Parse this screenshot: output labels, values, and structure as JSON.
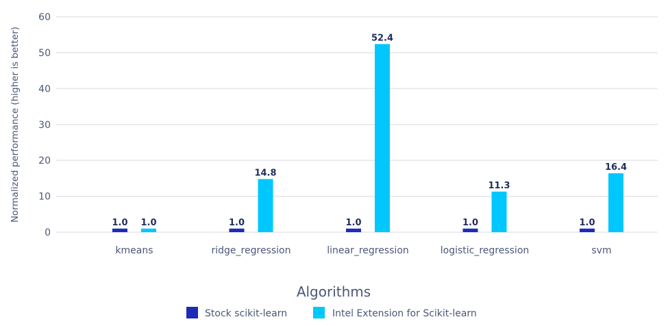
{
  "chart_data": {
    "type": "bar",
    "title": "",
    "xlabel": "Algorithms",
    "ylabel": "Normalized performance (higher is better)",
    "ylim": [
      0,
      60
    ],
    "yticks": [
      "0",
      "10",
      "20",
      "30",
      "40",
      "50",
      "60"
    ],
    "grid": "horizontal",
    "legend_position": "bottom",
    "categories": [
      "kmeans",
      "ridge_regression",
      "linear_regression",
      "logistic_regression",
      "svm"
    ],
    "series": [
      {
        "name": "Stock scikit-learn",
        "color": "#1e2bb8",
        "values": [
          1.0,
          1.0,
          1.0,
          1.0,
          1.0
        ],
        "labels": [
          "1.0",
          "1.0",
          "1.0",
          "1.0",
          "1.0"
        ]
      },
      {
        "name": "Intel Extension for Scikit-learn",
        "color": "#00c7fd",
        "values": [
          1.0,
          14.8,
          52.4,
          11.3,
          16.4
        ],
        "labels": [
          "1.0",
          "14.8",
          "52.4",
          "11.3",
          "16.4"
        ]
      }
    ]
  }
}
